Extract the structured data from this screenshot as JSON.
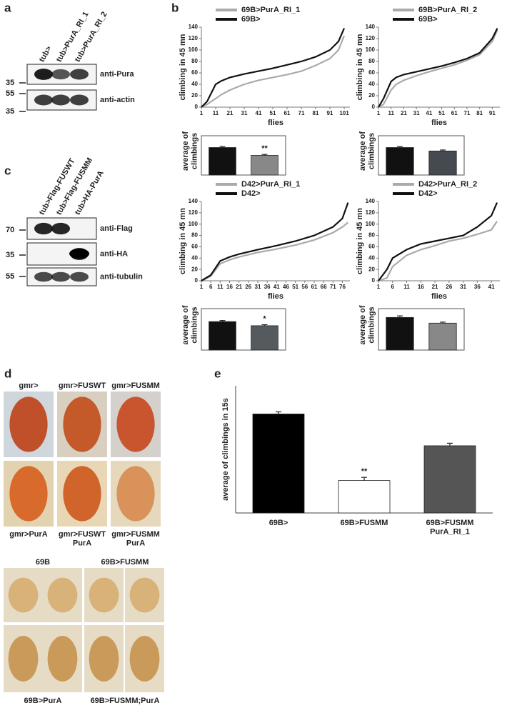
{
  "panels": {
    "a": "a",
    "b": "b",
    "c": "c",
    "d": "d",
    "e": "e"
  },
  "blot_a": {
    "lanes": [
      "tub>",
      "tub>PurA_RI_1",
      "tub>PurA_RI_2"
    ],
    "markers": [
      35,
      55,
      35
    ],
    "antibodies": [
      "anti-Pura",
      "anti-actin"
    ]
  },
  "blot_c": {
    "lanes": [
      "tub>Flag-FUSWT",
      "tub>Flag-FUSMM",
      "tub>HA-PurA"
    ],
    "markers": [
      70,
      35,
      55
    ],
    "antibodies": [
      "anti-Flag",
      "anti-HA",
      "anti-tubulin"
    ]
  },
  "photos": {
    "eye_top": [
      "gmr>",
      "gmr>FUSWT",
      "gmr>FUSMM"
    ],
    "eye_bottom": [
      "gmr>PurA",
      "gmr>FUSWT\nPurA",
      "gmr>FUSMM\nPurA"
    ],
    "fly_top": [
      "69B",
      "69B>FUSMM"
    ],
    "fly_bottom": [
      "69B>PurA",
      "69B>FUSMM;PurA"
    ]
  },
  "chart_data": [
    {
      "type": "line",
      "xlabel": "flies",
      "ylabel": "climbing in 45 mn",
      "x": [
        1,
        5,
        11,
        15,
        21,
        31,
        41,
        51,
        61,
        71,
        81,
        91,
        97,
        101
      ],
      "xlim": [
        1,
        105
      ],
      "xticks": [
        1,
        11,
        21,
        31,
        41,
        51,
        61,
        71,
        81,
        91,
        101
      ],
      "ylim": [
        0,
        140
      ],
      "yticks": [
        0,
        20,
        40,
        60,
        80,
        100,
        120,
        140
      ],
      "series": [
        {
          "name": "69B>PurA_RI_1",
          "color": "#aaaaaa",
          "values": [
            0,
            5,
            15,
            22,
            30,
            40,
            47,
            52,
            57,
            63,
            73,
            85,
            100,
            125
          ]
        },
        {
          "name": "69B>",
          "color": "#111111",
          "values": [
            0,
            10,
            40,
            46,
            52,
            58,
            63,
            68,
            74,
            80,
            88,
            100,
            115,
            138
          ]
        }
      ]
    },
    {
      "type": "bar",
      "ylabel": "average of\nclimbings",
      "ylim": [
        0,
        80
      ],
      "values": [
        56,
        40
      ],
      "errors": [
        2,
        2
      ],
      "colors": [
        "#111111",
        "#888888"
      ],
      "significance": [
        null,
        "**"
      ]
    },
    {
      "type": "line",
      "xlabel": "flies",
      "ylabel": "climbing in 45 mn",
      "x": [
        1,
        5,
        11,
        15,
        21,
        31,
        41,
        51,
        61,
        71,
        81,
        91,
        95
      ],
      "xlim": [
        1,
        97
      ],
      "xticks": [
        1,
        11,
        21,
        31,
        41,
        51,
        61,
        71,
        81,
        91
      ],
      "ylim": [
        0,
        140
      ],
      "yticks": [
        0,
        20,
        40,
        60,
        80,
        100,
        120,
        140
      ],
      "series": [
        {
          "name": "69B>PurA_RI_2",
          "color": "#aaaaaa",
          "values": [
            0,
            5,
            30,
            40,
            47,
            55,
            62,
            68,
            74,
            82,
            92,
            115,
            135
          ]
        },
        {
          "name": "69B>",
          "color": "#111111",
          "values": [
            0,
            15,
            45,
            52,
            57,
            62,
            67,
            72,
            78,
            85,
            95,
            120,
            138
          ]
        }
      ]
    },
    {
      "type": "bar",
      "ylabel": "average of\nclimbings",
      "ylim": [
        0,
        80
      ],
      "values": [
        56,
        49
      ],
      "errors": [
        2,
        2
      ],
      "colors": [
        "#111111",
        "#444a50"
      ],
      "significance": [
        null,
        null
      ]
    },
    {
      "type": "line",
      "xlabel": "flies",
      "ylabel": "climbing in 45 mn",
      "x": [
        1,
        6,
        11,
        16,
        21,
        31,
        41,
        51,
        61,
        71,
        76,
        79
      ],
      "xlim": [
        1,
        80
      ],
      "xticks": [
        1,
        6,
        11,
        16,
        21,
        26,
        31,
        36,
        41,
        46,
        51,
        56,
        61,
        66,
        71,
        76
      ],
      "ylim": [
        0,
        140
      ],
      "yticks": [
        0,
        20,
        40,
        60,
        80,
        100,
        120,
        140
      ],
      "series": [
        {
          "name": "D42>PurA_RI_1",
          "color": "#aaaaaa",
          "values": [
            0,
            8,
            30,
            37,
            42,
            50,
            56,
            63,
            72,
            85,
            95,
            103
          ]
        },
        {
          "name": "D42>",
          "color": "#111111",
          "values": [
            0,
            10,
            35,
            42,
            47,
            55,
            62,
            70,
            80,
            95,
            110,
            138
          ]
        }
      ]
    },
    {
      "type": "bar",
      "ylabel": "average of\nclimbings",
      "ylim": [
        0,
        80
      ],
      "values": [
        55,
        47
      ],
      "errors": [
        2,
        2
      ],
      "colors": [
        "#111111",
        "#555a5f"
      ],
      "significance": [
        null,
        "*"
      ]
    },
    {
      "type": "line",
      "xlabel": "flies",
      "ylabel": "climbing in 45 mn",
      "x": [
        1,
        4,
        6,
        11,
        16,
        21,
        26,
        31,
        36,
        41,
        43
      ],
      "xlim": [
        1,
        44
      ],
      "xticks": [
        1,
        6,
        11,
        16,
        21,
        26,
        31,
        36,
        41
      ],
      "ylim": [
        0,
        140
      ],
      "yticks": [
        0,
        20,
        40,
        60,
        80,
        100,
        120,
        140
      ],
      "series": [
        {
          "name": "D42>PurA_RI_2",
          "color": "#aaaaaa",
          "values": [
            0,
            5,
            25,
            45,
            55,
            62,
            70,
            75,
            82,
            90,
            105
          ]
        },
        {
          "name": "D42>",
          "color": "#111111",
          "values": [
            0,
            20,
            40,
            55,
            65,
            70,
            75,
            80,
            95,
            115,
            138
          ]
        }
      ]
    },
    {
      "type": "bar",
      "ylabel": "average of\nclimbings",
      "ylim": [
        0,
        80
      ],
      "values": [
        63,
        52
      ],
      "errors": [
        3,
        2
      ],
      "colors": [
        "#111111",
        "#888888"
      ],
      "significance": [
        null,
        null
      ]
    },
    {
      "type": "bar",
      "ylabel": "average of climbings in 15s",
      "categories": [
        "69B>",
        "69B>FUSMM",
        "69B>FUSMM\nPurA_RI_1"
      ],
      "ylim": [
        0,
        6
      ],
      "values": [
        4.67,
        1.53,
        3.17
      ],
      "errors": [
        0.1,
        0.15,
        0.12
      ],
      "colors": [
        "#000000",
        "#ffffff",
        "#555555"
      ],
      "significance": [
        null,
        "**",
        null
      ]
    }
  ]
}
